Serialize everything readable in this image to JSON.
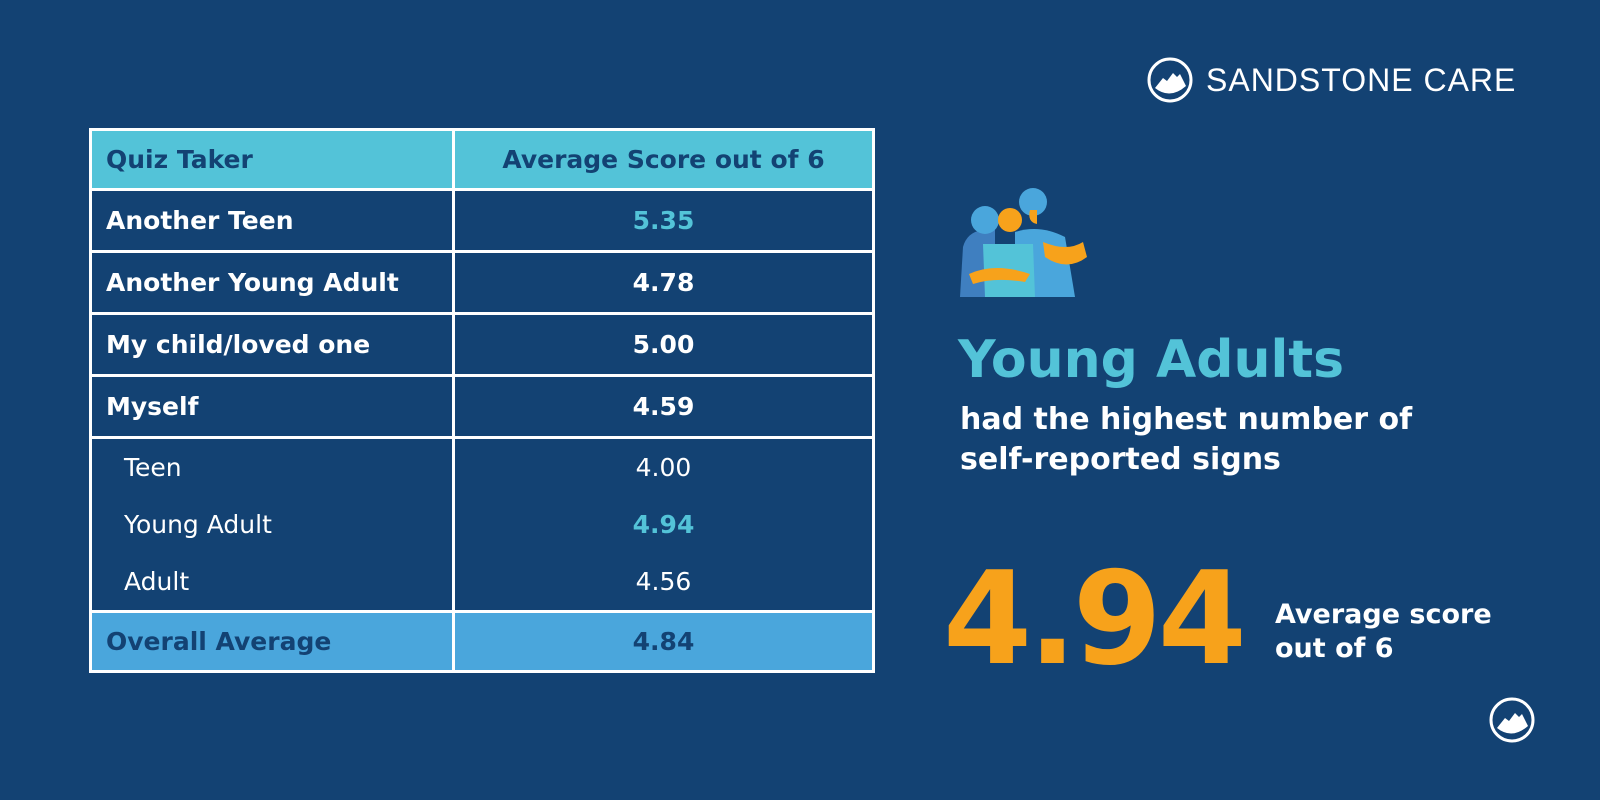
{
  "brand": {
    "name": "SANDSTONE CARE"
  },
  "colors": {
    "background": "#134273",
    "header": "#53c3d8",
    "total_row": "#4aa6dc",
    "accent": "#f7a21b",
    "highlight": "#53c3d8"
  },
  "chart_data": {
    "type": "table",
    "columns": [
      "Quiz Taker",
      "Average Score out of 6"
    ],
    "rows": [
      {
        "label": "Another Teen",
        "value": "5.35",
        "highlight": true
      },
      {
        "label": "Another Young Adult",
        "value": "4.78"
      },
      {
        "label": "My child/loved one",
        "value": "5.00"
      },
      {
        "label": "Myself",
        "value": "4.59"
      },
      {
        "label": "Teen",
        "value": "4.00",
        "sub": true
      },
      {
        "label": "Young Adult",
        "value": "4.94",
        "sub": true,
        "highlight": true
      },
      {
        "label": "Adult",
        "value": "4.56",
        "sub": true
      }
    ],
    "total": {
      "label": "Overall Average",
      "value": "4.84"
    }
  },
  "callout": {
    "headline": "Young Adults",
    "text": "had the highest number of self-reported signs",
    "big_value": "4.94",
    "big_caption_1": "Average score",
    "big_caption_2": "out of 6"
  }
}
